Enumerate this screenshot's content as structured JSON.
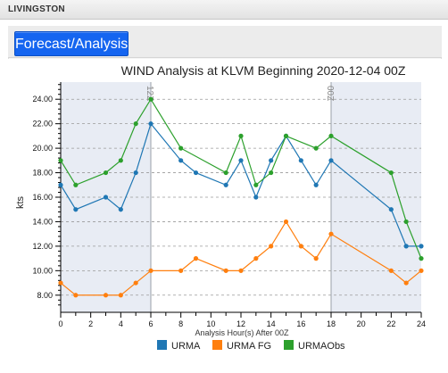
{
  "app": {
    "station_name": "LIVINGSTON"
  },
  "tabs": [
    {
      "label": "Forecast/Analysis",
      "active": true
    }
  ],
  "colors": {
    "urma": "#1f77b4",
    "urma_fg": "#ff7f0e",
    "urma_obs": "#2ca02c",
    "accent": "#1565f0",
    "shade": "#e8ecf4"
  },
  "chart_data": {
    "type": "line",
    "title": "WIND Analysis at KLVM Beginning 2020-12-04 00Z",
    "xlabel": "Analysis Hour(s) After 00Z",
    "ylabel": "kts",
    "xlim": [
      0,
      24
    ],
    "ylim": [
      6.6,
      25.4
    ],
    "x_ticks": [
      0,
      2,
      4,
      6,
      8,
      10,
      12,
      14,
      16,
      18,
      20,
      22,
      24
    ],
    "y_ticks": [
      8,
      10,
      12,
      14,
      16,
      18,
      20,
      22,
      24
    ],
    "y_tick_labels": [
      "8.00",
      "10.00",
      "12.00",
      "14.00",
      "16.00",
      "18.00",
      "20.00",
      "22.00",
      "24.00"
    ],
    "grid": "horizontal dashed",
    "legend_position": "bottom",
    "shaded_ranges": [
      [
        0,
        6
      ],
      [
        18,
        24
      ]
    ],
    "markers": [
      {
        "x": 6,
        "label": "12Z"
      },
      {
        "x": 18,
        "label": "00Z"
      }
    ],
    "series": [
      {
        "name": "URMA",
        "color": "#1f77b4",
        "x": [
          0,
          1,
          3,
          4,
          5,
          6,
          8,
          9,
          11,
          12,
          13,
          14,
          15,
          16,
          17,
          18,
          22,
          23,
          24
        ],
        "values": [
          17,
          15,
          16,
          15,
          18,
          22,
          19,
          18,
          17,
          19,
          16,
          19,
          21,
          19,
          17,
          19,
          15,
          12,
          12
        ]
      },
      {
        "name": "URMA FG",
        "color": "#ff7f0e",
        "x": [
          0,
          1,
          3,
          4,
          5,
          6,
          8,
          9,
          11,
          12,
          13,
          14,
          15,
          16,
          17,
          18,
          22,
          23,
          24
        ],
        "values": [
          9,
          8,
          8,
          8,
          9,
          10,
          10,
          11,
          10,
          10,
          11,
          12,
          14,
          12,
          11,
          13,
          10,
          9,
          10
        ]
      },
      {
        "name": "URMAObs",
        "color": "#2ca02c",
        "x": [
          0,
          1,
          3,
          4,
          5,
          6,
          8,
          11,
          12,
          13,
          14,
          15,
          17,
          18,
          22,
          23,
          24
        ],
        "values": [
          19,
          17,
          18,
          19,
          22,
          24,
          20,
          18,
          21,
          17,
          18,
          21,
          20,
          21,
          18,
          14,
          11
        ]
      }
    ]
  }
}
